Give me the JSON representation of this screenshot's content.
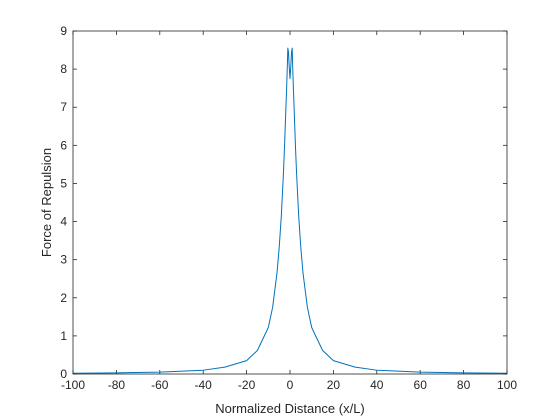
{
  "chart_data": {
    "type": "line",
    "title": "",
    "xlabel": "Normalized Distance (x/L)",
    "ylabel": "Force of Repulsion",
    "xlim": [
      -100,
      100
    ],
    "ylim": [
      0,
      9
    ],
    "xticks": [
      -100,
      -80,
      -60,
      -40,
      -20,
      0,
      20,
      40,
      60,
      80,
      100
    ],
    "yticks": [
      0,
      1,
      2,
      3,
      4,
      5,
      6,
      7,
      8,
      9
    ],
    "grid": false,
    "legend": "none",
    "series": [
      {
        "color": "#0072BD",
        "x": [
          -100,
          -80,
          -60,
          -40,
          -30,
          -20,
          -15,
          -10,
          -8,
          -6,
          -5,
          -4,
          -3,
          -2.5,
          -2,
          -1.5,
          -1.2,
          -1,
          -0.7,
          -0.4,
          0,
          0.4,
          0.7,
          1,
          1.2,
          1.5,
          2,
          2.5,
          3,
          4,
          5,
          6,
          8,
          10,
          15,
          20,
          30,
          40,
          60,
          80,
          100
        ],
        "y": [
          0.02,
          0.03,
          0.05,
          0.1,
          0.18,
          0.35,
          0.62,
          1.22,
          1.75,
          2.65,
          3.3,
          4.15,
          5.3,
          6.0,
          6.8,
          7.6,
          8.15,
          8.55,
          8.45,
          8.1,
          7.75,
          8.1,
          8.45,
          8.55,
          8.15,
          7.6,
          6.8,
          6.0,
          5.3,
          4.15,
          3.3,
          2.65,
          1.75,
          1.22,
          0.62,
          0.35,
          0.18,
          0.1,
          0.05,
          0.03,
          0.02
        ]
      }
    ]
  }
}
